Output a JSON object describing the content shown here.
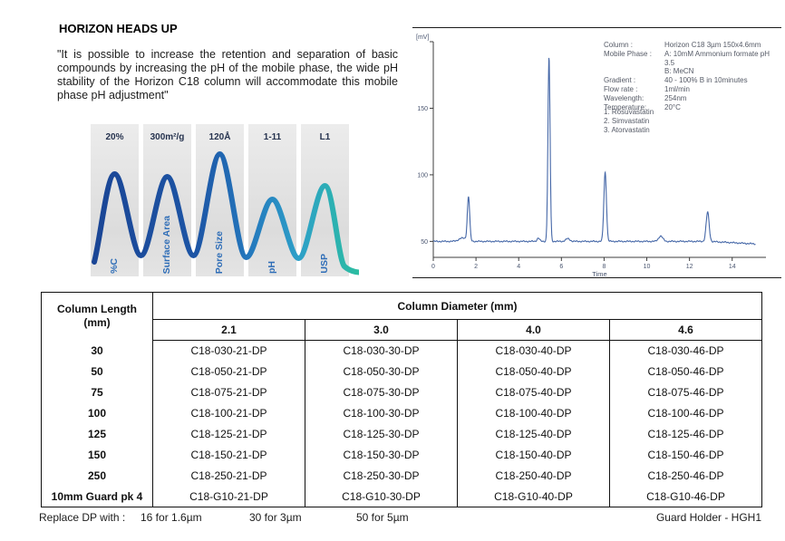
{
  "heads_up": {
    "title": "HORIZON HEADS UP",
    "quote": "\"It is possible to increase the retention and separation of basic compounds by increasing the pH of the mobile phase, the wide pH stability of the Horizon C18 column will accommodate this mobile phase pH adjustment\""
  },
  "wave_graphic": {
    "bands": [
      {
        "value": "20%",
        "label": "%C"
      },
      {
        "value": "300m²/g",
        "label": "Surface Area"
      },
      {
        "value": "120Å",
        "label": "Pore Size"
      },
      {
        "value": "1-11",
        "label": "pH"
      },
      {
        "value": "L1",
        "label": "USP"
      }
    ],
    "gradient": [
      "#1a4494",
      "#1d55a5",
      "#2478bd",
      "#2da0c8",
      "#2cbda1"
    ]
  },
  "chart_data": {
    "type": "line",
    "title": "",
    "xlabel": "Time",
    "ylabel": "[mV]",
    "xlim": [
      0,
      15.2
    ],
    "ylim": [
      38,
      200
    ],
    "xticks": [
      0,
      2,
      4,
      6,
      8,
      10,
      12,
      14
    ],
    "yticks": [
      50,
      100,
      150
    ],
    "grid": false,
    "line_color": "#4668a8",
    "axis_color": "#3c3c3c",
    "label_color": "#4a5670",
    "baseline": {
      "level": 50,
      "decline_start": 12.9,
      "end_level": 48
    },
    "peaks": [
      {
        "time": 1.38,
        "height": 52.5,
        "width": 0.18
      },
      {
        "time": 1.65,
        "height": 83,
        "width": 0.055
      },
      {
        "time": 4.92,
        "height": 52.5,
        "width": 0.06
      },
      {
        "time": 5.42,
        "height": 188,
        "width": 0.05
      },
      {
        "time": 6.3,
        "height": 52,
        "width": 0.1
      },
      {
        "time": 8.05,
        "height": 102,
        "width": 0.06
      },
      {
        "time": 10.65,
        "height": 54,
        "width": 0.1
      },
      {
        "time": 12.85,
        "height": 72,
        "width": 0.07
      }
    ],
    "conditions": [
      {
        "label": "Column :",
        "value": "Horizon C18 3µm 150x4.6mm"
      },
      {
        "label": "Mobile Phase :",
        "value": "A: 10mM Ammonium formate pH 3.5\nB:  MeCN"
      },
      {
        "label": "Gradient :",
        "value": "40 - 100% B in 10minutes"
      },
      {
        "label": "Flow rate :",
        "value": "1ml/min"
      },
      {
        "label": "Wavelength:",
        "value": "254nm"
      },
      {
        "label": "Temperature:",
        "value": "20°C"
      }
    ],
    "compounds": [
      "1. Rosuvastatin",
      "2. Simvastatin",
      "3. Atorvastatin"
    ]
  },
  "table": {
    "row_header": "Column Length\n(mm)",
    "col_group_header": "Column Diameter (mm)",
    "diameters": [
      "2.1",
      "3.0",
      "4.0",
      "4.6"
    ],
    "rows": [
      {
        "length": "30",
        "parts": [
          "C18-030-21-DP",
          "C18-030-30-DP",
          "C18-030-40-DP",
          "C18-030-46-DP"
        ]
      },
      {
        "length": "50",
        "parts": [
          "C18-050-21-DP",
          "C18-050-30-DP",
          "C18-050-40-DP",
          "C18-050-46-DP"
        ]
      },
      {
        "length": "75",
        "parts": [
          "C18-075-21-DP",
          "C18-075-30-DP",
          "C18-075-40-DP",
          "C18-075-46-DP"
        ]
      },
      {
        "length": "100",
        "parts": [
          "C18-100-21-DP",
          "C18-100-30-DP",
          "C18-100-40-DP",
          "C18-100-46-DP"
        ]
      },
      {
        "length": "125",
        "parts": [
          "C18-125-21-DP",
          "C18-125-30-DP",
          "C18-125-40-DP",
          "C18-125-46-DP"
        ]
      },
      {
        "length": "150",
        "parts": [
          "C18-150-21-DP",
          "C18-150-30-DP",
          "C18-150-40-DP",
          "C18-150-46-DP"
        ]
      },
      {
        "length": "250",
        "parts": [
          "C18-250-21-DP",
          "C18-250-30-DP",
          "C18-250-40-DP",
          "C18-250-46-DP"
        ]
      },
      {
        "length": "10mm Guard pk 4",
        "parts": [
          "C18-G10-21-DP",
          "C18-G10-30-DP",
          "C18-G10-40-DP",
          "C18-G10-46-DP"
        ]
      }
    ]
  },
  "footer": {
    "replace_label": "Replace DP with :",
    "options": [
      "16 for 1.6µm",
      "30 for 3µm",
      "50 for 5µm"
    ],
    "guard_holder": "Guard Holder - HGH1"
  }
}
